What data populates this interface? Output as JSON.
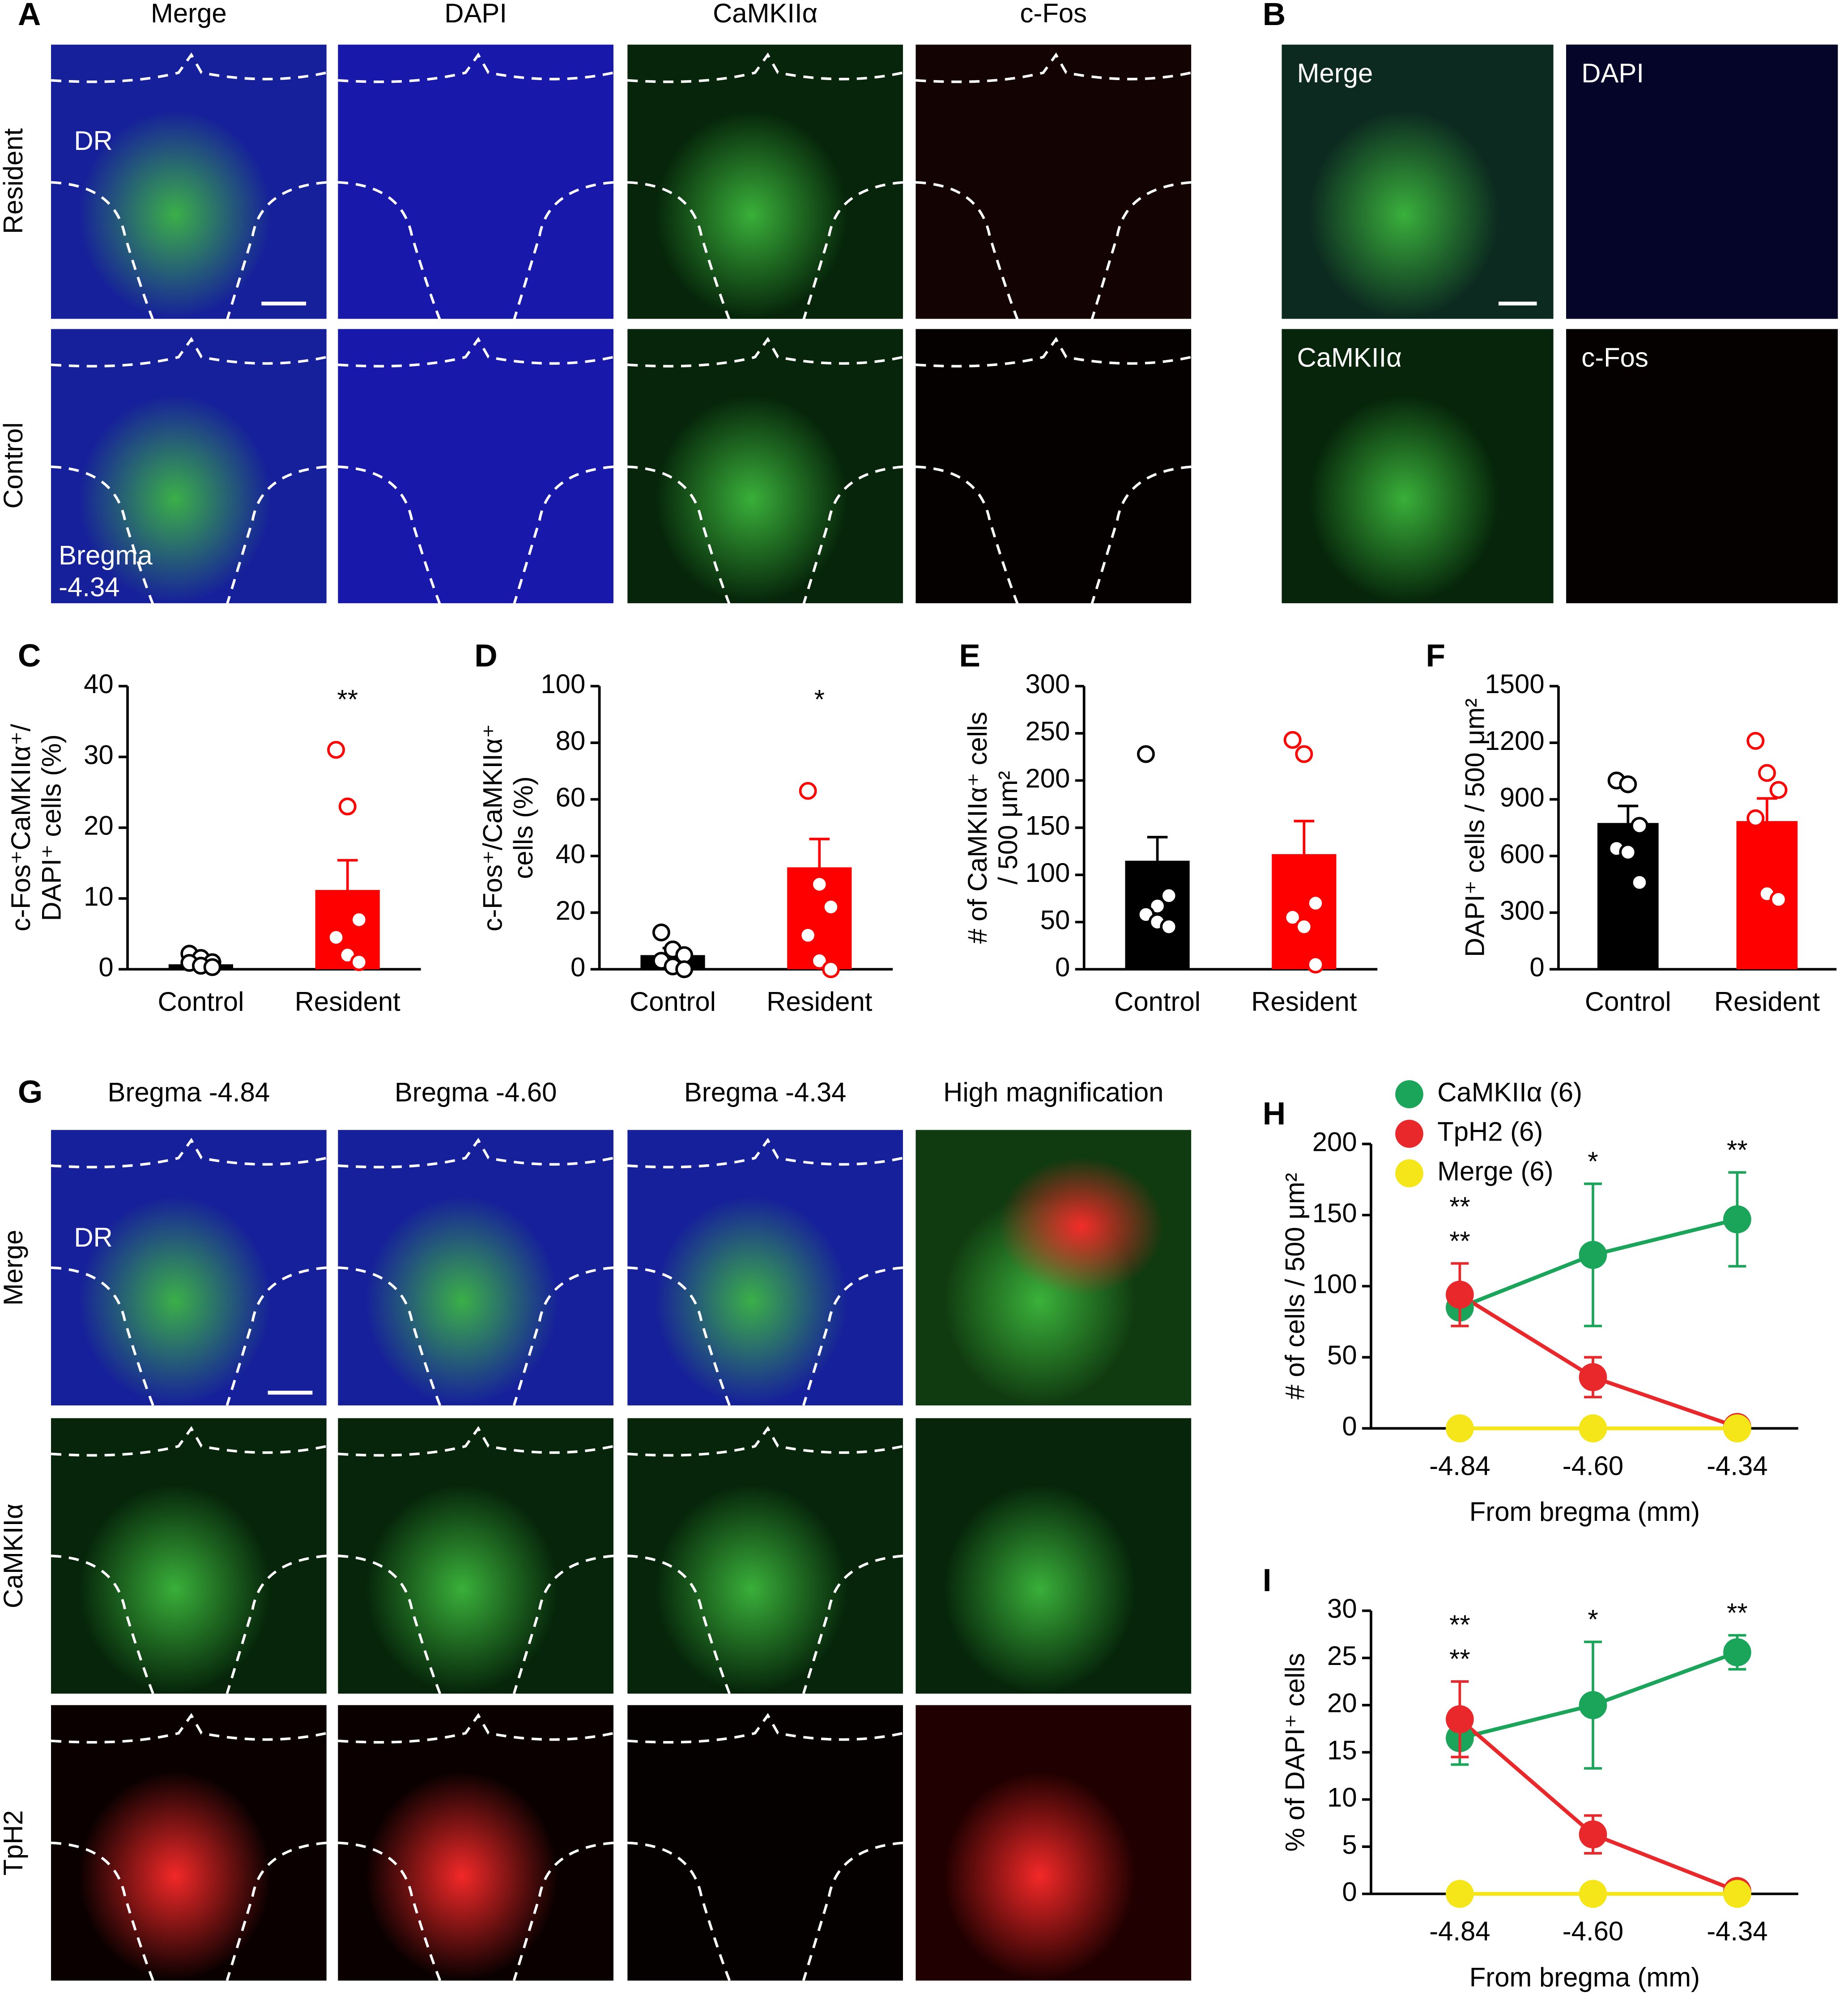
{
  "panel_A": {
    "label": "A",
    "columns": [
      "Merge",
      "DAPI",
      "CaMKIIα",
      "c-Fos"
    ],
    "rows": [
      "Resident",
      "Control"
    ],
    "region": "DR",
    "bregma": [
      "Bregma",
      "-4.34"
    ]
  },
  "panel_B": {
    "label": "B",
    "images": [
      "Merge",
      "DAPI",
      "CaMKIIα",
      "c-Fos"
    ]
  },
  "panel_G": {
    "label": "G",
    "columns": [
      "Bregma -4.84",
      "Bregma -4.60",
      "Bregma -4.34",
      "High magnification"
    ],
    "rows": [
      "Merge",
      "CaMKIIα",
      "TpH2"
    ],
    "region": "DR"
  },
  "chart_data": [
    {
      "type": "bar",
      "label": "C",
      "ylabel": [
        "c-Fos⁺CaMKIIα⁺/",
        "DAPI⁺ cells (%)"
      ],
      "categories": [
        "Control",
        "Resident"
      ],
      "values": [
        0.7,
        11.2
      ],
      "errors": [
        0.5,
        4.2
      ],
      "colors": [
        "#000000",
        "#ff0000"
      ],
      "points": [
        [
          2.2,
          1.6,
          1.0,
          0.9,
          0.5,
          0.3
        ],
        [
          31,
          23,
          7,
          4.5,
          2,
          1
        ]
      ],
      "ylim": [
        0,
        40
      ],
      "yticks": [
        0,
        10,
        20,
        30,
        40
      ],
      "annotations": [
        {
          "text": "**",
          "category": "Resident"
        }
      ]
    },
    {
      "type": "bar",
      "label": "D",
      "ylabel": [
        "c-Fos⁺/CaMKIIα⁺",
        "cells (%)"
      ],
      "categories": [
        "Control",
        "Resident"
      ],
      "values": [
        5,
        36
      ],
      "errors": [
        2.5,
        10
      ],
      "colors": [
        "#000000",
        "#ff0000"
      ],
      "points": [
        [
          13,
          7,
          5,
          3,
          1,
          0
        ],
        [
          63,
          30,
          22,
          12,
          3,
          0
        ]
      ],
      "ylim": [
        0,
        100
      ],
      "yticks": [
        0,
        20,
        40,
        60,
        80,
        100
      ],
      "annotations": [
        {
          "text": "*",
          "category": "Resident"
        }
      ]
    },
    {
      "type": "bar",
      "label": "E",
      "ylabel": [
        "# of CaMKIIα⁺ cells",
        "/ 500 μm²"
      ],
      "categories": [
        "Control",
        "Resident"
      ],
      "values": [
        115,
        122
      ],
      "errors": [
        25,
        35
      ],
      "colors": [
        "#000000",
        "#ff0000"
      ],
      "points": [
        [
          228,
          67,
          78,
          58,
          50,
          45
        ],
        [
          243,
          228,
          70,
          55,
          45,
          5
        ]
      ],
      "ylim": [
        0,
        300
      ],
      "yticks": [
        0,
        50,
        100,
        150,
        200,
        250,
        300
      ]
    },
    {
      "type": "bar",
      "label": "F",
      "ylabel": [
        "DAPI⁺ cells / 500 μm²"
      ],
      "categories": [
        "Control",
        "Resident"
      ],
      "values": [
        775,
        785
      ],
      "errors": [
        90,
        120
      ],
      "colors": [
        "#000000",
        "#ff0000"
      ],
      "points": [
        [
          1000,
          980,
          760,
          640,
          620,
          460
        ],
        [
          1210,
          1040,
          950,
          800,
          400,
          370
        ]
      ],
      "ylim": [
        0,
        1500
      ],
      "yticks": [
        0,
        300,
        600,
        900,
        1200,
        1500
      ]
    },
    {
      "type": "line",
      "label": "H",
      "ylabel": "# of cells / 500 μm²",
      "xlabel": "From bregma (mm)",
      "x": [
        -4.84,
        -4.6,
        -4.34
      ],
      "xlim": [
        -5.0,
        -4.23
      ],
      "xticks": [
        -4.84,
        {
          "value": -4.6,
          "label": "-4.60"
        },
        -4.34
      ],
      "ylim": [
        0,
        200
      ],
      "yticks": [
        0,
        50,
        100,
        150,
        200
      ],
      "legend": "upper left",
      "series": [
        {
          "name": "CaMKIIα (6)",
          "color": "#1aa55a",
          "values": [
            85,
            122,
            147
          ],
          "errors": [
            13,
            50,
            33
          ]
        },
        {
          "name": "TpH2 (6)",
          "color": "#e8282a",
          "values": [
            94,
            36,
            1
          ],
          "errors": [
            22,
            14,
            1
          ]
        },
        {
          "name": "Merge (6)",
          "color": "#f5e61a",
          "values": [
            0,
            0,
            0
          ],
          "errors": [
            0,
            0,
            0
          ]
        }
      ],
      "annotations": [
        {
          "text": "**",
          "x": -4.84,
          "color": "#1aa55a"
        },
        {
          "text": "**",
          "x": -4.84,
          "color": "#e8282a"
        },
        {
          "text": "*",
          "x": -4.6,
          "color": "#1aa55a"
        },
        {
          "text": "**",
          "x": -4.34,
          "color": "#1aa55a"
        }
      ]
    },
    {
      "type": "line",
      "label": "I",
      "ylabel": "% of DAPI⁺ cells",
      "xlabel": "From bregma (mm)",
      "x": [
        -4.84,
        -4.6,
        -4.34
      ],
      "xlim": [
        -5.0,
        -4.23
      ],
      "xticks": [
        -4.84,
        {
          "value": -4.6,
          "label": "-4.60"
        },
        -4.34
      ],
      "ylim": [
        0,
        30
      ],
      "yticks": [
        0,
        5,
        10,
        15,
        20,
        25,
        30
      ],
      "series": [
        {
          "color": "#1aa55a",
          "values": [
            16.5,
            20,
            25.6
          ],
          "errors": [
            2.8,
            6.7,
            1.8
          ]
        },
        {
          "color": "#e8282a",
          "values": [
            18.5,
            6.3,
            0.3
          ],
          "errors": [
            4,
            2,
            0.3
          ]
        },
        {
          "color": "#f5e61a",
          "values": [
            0,
            0,
            0
          ],
          "errors": [
            0,
            0,
            0
          ]
        }
      ],
      "annotations": [
        {
          "text": "**",
          "x": -4.84,
          "color": "#1aa55a"
        },
        {
          "text": "**",
          "x": -4.84,
          "color": "#e8282a"
        },
        {
          "text": "*",
          "x": -4.6,
          "color": "#1aa55a"
        },
        {
          "text": "**",
          "x": -4.34,
          "color": "#1aa55a"
        }
      ]
    }
  ]
}
